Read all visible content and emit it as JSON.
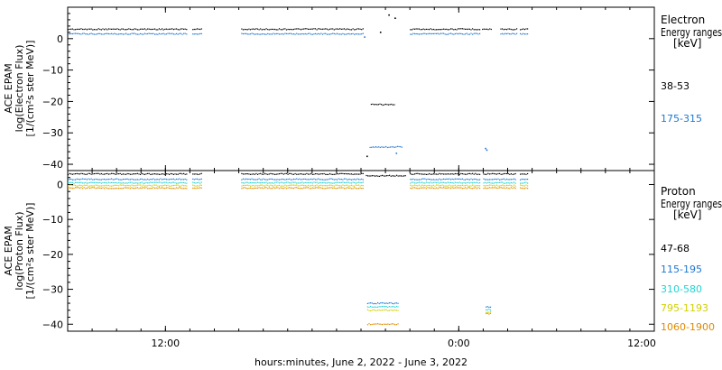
{
  "page": {
    "xlabel": "hours:minutes, June  2, 2022 - June  3, 2022"
  },
  "chart_data": [
    {
      "type": "scatter",
      "ylabel": [
        "ACE EPAM",
        "log(Electron Flux)",
        "[1/(cm²s ster MeV)]"
      ],
      "legend_title": [
        "Electron",
        "Energy ranges",
        "[keV]"
      ],
      "ylim": [
        -42,
        10
      ],
      "yticks": [
        0,
        -10,
        -20,
        -30,
        -40
      ],
      "ytick_labels": [
        "0",
        "−10",
        "−20",
        "−30",
        "−40"
      ],
      "series": [
        {
          "name": "38-53",
          "color": "#000000",
          "segments": [
            {
              "x": [
                0.0,
                9.8
              ],
              "y": 3.0
            },
            {
              "x": [
                10.2,
                11.0
              ],
              "y": 3.0
            },
            {
              "x": [
                14.2,
                24.2
              ],
              "y": 3.0
            },
            {
              "x": [
                28.0,
                33.7
              ],
              "y": 3.0
            },
            {
              "x": [
                33.9,
                34.7
              ],
              "y": 3.0
            },
            {
              "x": [
                35.4,
                36.7
              ],
              "y": 3.0
            },
            {
              "x": [
                37.0,
                37.6
              ],
              "y": 3.0
            },
            {
              "x": [
                24.8,
                26.8
              ],
              "y": -21.0
            }
          ],
          "points": [
            {
              "x": 25.6,
              "y": 2.0
            },
            {
              "x": 26.3,
              "y": 7.5
            },
            {
              "x": 26.8,
              "y": 6.5
            },
            {
              "x": 24.5,
              "y": -37.5
            }
          ]
        },
        {
          "name": "175-315",
          "color": "#1f77d0",
          "segments": [
            {
              "x": [
                0.0,
                9.8
              ],
              "y": 1.5
            },
            {
              "x": [
                10.2,
                11.0
              ],
              "y": 1.5
            },
            {
              "x": [
                14.2,
                24.2
              ],
              "y": 1.5
            },
            {
              "x": [
                28.0,
                33.7
              ],
              "y": 1.5
            },
            {
              "x": [
                35.4,
                36.7
              ],
              "y": 1.5
            },
            {
              "x": [
                37.0,
                37.6
              ],
              "y": 1.5
            },
            {
              "x": [
                24.7,
                27.3
              ],
              "y": -34.5
            }
          ],
          "points": [
            {
              "x": 24.3,
              "y": 0.5
            },
            {
              "x": 34.2,
              "y": -35.0
            },
            {
              "x": 34.3,
              "y": -35.5
            },
            {
              "x": 26.9,
              "y": -36.5
            }
          ]
        }
      ]
    },
    {
      "type": "scatter",
      "ylabel": [
        "ACE EPAM",
        "log(Proton Flux)",
        "[1/(cm²s ster MeV)]"
      ],
      "legend_title": [
        "Proton",
        "Energy ranges",
        "[keV]"
      ],
      "ylim": [
        -42,
        4
      ],
      "yticks": [
        0,
        -10,
        -20,
        -30,
        -40
      ],
      "ytick_labels": [
        "0",
        "−10",
        "−20",
        "−30",
        "−40"
      ],
      "series": [
        {
          "name": "47-68",
          "color": "#000000",
          "segments": [
            {
              "x": [
                0.0,
                9.8
              ],
              "y": 3.0
            },
            {
              "x": [
                10.2,
                11.0
              ],
              "y": 3.0
            },
            {
              "x": [
                14.2,
                24.2
              ],
              "y": 3.0
            },
            {
              "x": [
                24.4,
                27.6
              ],
              "y": 2.5
            },
            {
              "x": [
                28.0,
                33.7
              ],
              "y": 3.0
            },
            {
              "x": [
                34.0,
                36.7
              ],
              "y": 3.0
            },
            {
              "x": [
                37.0,
                37.6
              ],
              "y": 3.0
            }
          ],
          "points": []
        },
        {
          "name": "115-195",
          "color": "#1f77d0",
          "segments": [
            {
              "x": [
                0.0,
                9.8
              ],
              "y": 1.5
            },
            {
              "x": [
                10.2,
                11.0
              ],
              "y": 1.5
            },
            {
              "x": [
                14.2,
                24.2
              ],
              "y": 1.5
            },
            {
              "x": [
                28.0,
                33.7
              ],
              "y": 1.5
            },
            {
              "x": [
                34.0,
                36.7
              ],
              "y": 1.5
            },
            {
              "x": [
                37.0,
                37.6
              ],
              "y": 1.5
            },
            {
              "x": [
                24.5,
                27.0
              ],
              "y": -34.0
            },
            {
              "x": [
                34.2,
                34.6
              ],
              "y": -35.0
            }
          ],
          "points": []
        },
        {
          "name": "310-580",
          "color": "#22d3d3",
          "segments": [
            {
              "x": [
                0.0,
                9.8
              ],
              "y": 0.5
            },
            {
              "x": [
                10.2,
                11.0
              ],
              "y": 0.5
            },
            {
              "x": [
                14.2,
                24.2
              ],
              "y": 0.5
            },
            {
              "x": [
                28.0,
                33.7
              ],
              "y": 0.5
            },
            {
              "x": [
                34.0,
                36.7
              ],
              "y": 0.5
            },
            {
              "x": [
                37.0,
                37.6
              ],
              "y": 0.5
            },
            {
              "x": [
                24.5,
                27.0
              ],
              "y": -35.0
            },
            {
              "x": [
                34.2,
                34.6
              ],
              "y": -35.8
            }
          ],
          "points": []
        },
        {
          "name": "795-1193",
          "color": "#d0d000",
          "segments": [
            {
              "x": [
                0.0,
                9.8
              ],
              "y": -0.3
            },
            {
              "x": [
                10.2,
                11.0
              ],
              "y": -0.3
            },
            {
              "x": [
                14.2,
                24.2
              ],
              "y": -0.3
            },
            {
              "x": [
                28.0,
                33.7
              ],
              "y": -0.3
            },
            {
              "x": [
                34.0,
                36.7
              ],
              "y": -0.3
            },
            {
              "x": [
                37.0,
                37.6
              ],
              "y": -0.3
            },
            {
              "x": [
                24.5,
                27.0
              ],
              "y": -36.0
            },
            {
              "x": [
                34.2,
                34.6
              ],
              "y": -36.5
            }
          ],
          "points": []
        },
        {
          "name": "1060-1900",
          "color": "#e08a00",
          "segments": [
            {
              "x": [
                0.0,
                9.8
              ],
              "y": -1.0
            },
            {
              "x": [
                10.2,
                11.0
              ],
              "y": -1.0
            },
            {
              "x": [
                14.2,
                24.2
              ],
              "y": -1.0
            },
            {
              "x": [
                28.0,
                33.7
              ],
              "y": -1.0
            },
            {
              "x": [
                34.0,
                36.7
              ],
              "y": -1.0
            },
            {
              "x": [
                37.0,
                37.6
              ],
              "y": -1.0
            },
            {
              "x": [
                24.5,
                27.0
              ],
              "y": -40.0
            },
            {
              "x": [
                34.2,
                34.6
              ],
              "y": -37.0
            }
          ],
          "points": []
        }
      ]
    }
  ],
  "x_axis": {
    "xlim": [
      0,
      48
    ],
    "major_ticks": [
      8,
      32,
      56
    ],
    "tick_labels": [
      "12:00",
      "0:00",
      "12:00"
    ],
    "minor_ticks": [
      0,
      2,
      4,
      6,
      8,
      10,
      12,
      14,
      16,
      18,
      20,
      22,
      24,
      26,
      28,
      30,
      32,
      34,
      36,
      38,
      40,
      42,
      44,
      46,
      48,
      50,
      52,
      54,
      56,
      58,
      60
    ]
  }
}
